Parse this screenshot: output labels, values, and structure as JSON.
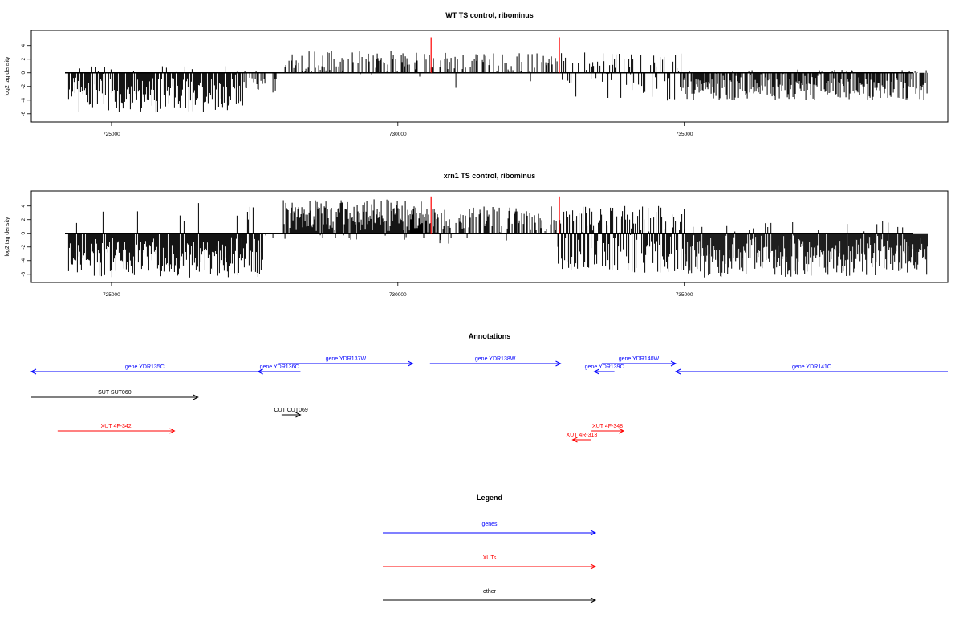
{
  "chart_data": [
    {
      "type": "bar",
      "title": "WT TS control, ribominus",
      "ylabel": "log2 tag density",
      "xlabel": "",
      "xlim": [
        723600,
        739600
      ],
      "ylim": [
        -7.2,
        6.2
      ],
      "x_ticks": [
        {
          "value": 725000,
          "label": "725000"
        },
        {
          "value": 730000,
          "label": "730000"
        },
        {
          "value": 735000,
          "label": "735000"
        }
      ],
      "y_ticks": [
        {
          "value": -6,
          "label": "-6"
        },
        {
          "value": -4,
          "label": "-4"
        },
        {
          "value": -2,
          "label": "-2"
        },
        {
          "value": 0,
          "label": "0"
        },
        {
          "value": 2,
          "label": "2"
        },
        {
          "value": 4,
          "label": "4"
        }
      ],
      "grid": false,
      "segments": [
        {
          "x0": 724250,
          "x1": 727300,
          "min": -5.8,
          "max": 1.0,
          "density": 0.9,
          "base": "neg"
        },
        {
          "x0": 727300,
          "x1": 727950,
          "min": -3.0,
          "max": 0.3,
          "density": 0.35,
          "base": "neg"
        },
        {
          "x0": 728000,
          "x1": 730550,
          "min": -0.6,
          "max": 3.2,
          "density": 0.45,
          "base": "pos"
        },
        {
          "x0": 730550,
          "x1": 732800,
          "min": -2.8,
          "max": 3.0,
          "density": 0.35,
          "base": "pos"
        },
        {
          "x0": 732800,
          "x1": 734950,
          "min": -4.4,
          "max": 3.0,
          "density": 0.5,
          "base": "mix"
        },
        {
          "x0": 734950,
          "x1": 739250,
          "min": -4.0,
          "max": 0.5,
          "density": 0.8,
          "base": "neg"
        }
      ],
      "highlights": [
        {
          "x": 730580,
          "value": 5.2
        },
        {
          "x": 732820,
          "value": 5.2
        }
      ],
      "seed": 7
    },
    {
      "type": "bar",
      "title": "xrn1 TS control, ribominus",
      "ylabel": "log2 tag density",
      "xlabel": "",
      "xlim": [
        723600,
        739600
      ],
      "ylim": [
        -7.2,
        6.2
      ],
      "x_ticks": [
        {
          "value": 725000,
          "label": "725000"
        },
        {
          "value": 730000,
          "label": "730000"
        },
        {
          "value": 735000,
          "label": "735000"
        }
      ],
      "y_ticks": [
        {
          "value": -6,
          "label": "-6"
        },
        {
          "value": -4,
          "label": "-4"
        },
        {
          "value": -2,
          "label": "-2"
        },
        {
          "value": 0,
          "label": "0"
        },
        {
          "value": 2,
          "label": "2"
        },
        {
          "value": 4,
          "label": "4"
        }
      ],
      "grid": false,
      "segments": [
        {
          "x0": 724250,
          "x1": 727650,
          "min": -6.5,
          "max": 5.0,
          "density": 1.3,
          "base": "neg"
        },
        {
          "x0": 727650,
          "x1": 728000,
          "min": -0.5,
          "max": 0.5,
          "density": 0.1,
          "base": "neg"
        },
        {
          "x0": 728000,
          "x1": 730550,
          "min": -1.0,
          "max": 5.0,
          "density": 1.2,
          "base": "pos"
        },
        {
          "x0": 730550,
          "x1": 732800,
          "min": -2.0,
          "max": 4.0,
          "density": 0.6,
          "base": "pos"
        },
        {
          "x0": 732800,
          "x1": 735000,
          "min": -5.8,
          "max": 4.0,
          "density": 1.0,
          "base": "mix"
        },
        {
          "x0": 735000,
          "x1": 739250,
          "min": -6.5,
          "max": 1.8,
          "density": 1.1,
          "base": "neg"
        }
      ],
      "highlights": [
        {
          "x": 730580,
          "value": 5.4
        },
        {
          "x": 732820,
          "value": 5.4
        }
      ],
      "seed": 19
    }
  ],
  "annotations": {
    "title": "Annotations",
    "features": [
      {
        "label": "gene YDR135C",
        "color": "#0000ff",
        "x0": 723600,
        "x1": 727560,
        "dir": "left",
        "row": 1
      },
      {
        "label": "gene YDR136C",
        "color": "#0000ff",
        "x0": 727560,
        "x1": 728300,
        "dir": "left",
        "row": 1
      },
      {
        "label": "gene YDR137W",
        "color": "#0000ff",
        "x0": 727920,
        "x1": 730260,
        "dir": "right",
        "row": 0
      },
      {
        "label": "gene YDR138W",
        "color": "#0000ff",
        "x0": 730560,
        "x1": 732840,
        "dir": "right",
        "row": 0
      },
      {
        "label": "gene YDR139C",
        "color": "#0000ff",
        "x0": 733430,
        "x1": 733780,
        "dir": "left",
        "row": 1
      },
      {
        "label": "gene YDR140W",
        "color": "#0000ff",
        "x0": 733560,
        "x1": 734850,
        "dir": "right",
        "row": 0
      },
      {
        "label": "gene YDR141C",
        "color": "#0000ff",
        "x0": 734850,
        "x1": 739650,
        "dir": "left",
        "row": 1
      },
      {
        "label": "SUT SUT060",
        "color": "#000000",
        "x0": 723600,
        "x1": 726510,
        "dir": "right",
        "row": 2
      },
      {
        "label": "CUT CUT069",
        "color": "#000000",
        "x0": 727970,
        "x1": 728300,
        "dir": "right",
        "row": 3
      },
      {
        "label": "XUT 4F-342",
        "color": "#ff0000",
        "x0": 724060,
        "x1": 726100,
        "dir": "right",
        "row": 4
      },
      {
        "label": "XUT 4F-348",
        "color": "#ff0000",
        "x0": 733380,
        "x1": 733940,
        "dir": "right",
        "row": 4
      },
      {
        "label": "XUT 4R-313",
        "color": "#ff0000",
        "x0": 733050,
        "x1": 733370,
        "dir": "left",
        "row": 5
      }
    ]
  },
  "legend": {
    "title": "Legend",
    "items": [
      {
        "label": "genes",
        "color": "#0000ff"
      },
      {
        "label": "XUTs",
        "color": "#ff0000"
      },
      {
        "label": "other",
        "color": "#000000"
      }
    ]
  }
}
